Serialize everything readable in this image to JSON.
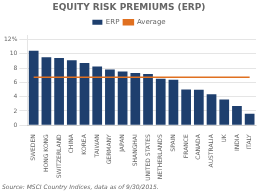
{
  "chart_data": {
    "type": "bar",
    "title": "EQUITY RISK PREMIUMS (ERP)",
    "categories": [
      "SWEDEN",
      "HONG KONG",
      "SWITZERLAND",
      "CHINA",
      "KOREA",
      "TAIWAN",
      "GERMANY",
      "JAPAN",
      "SHANGHAI",
      "UNITED STATES",
      "NETHERLANDS",
      "SPAIN",
      "FRANCE",
      "CANADA",
      "AUSTRALIA",
      "UK",
      "INDIA",
      "ITALY"
    ],
    "series": [
      {
        "name": "ERP",
        "type": "bar",
        "color": "#1e3f6e",
        "values": [
          10.4,
          9.5,
          9.4,
          9.1,
          8.7,
          8.2,
          7.8,
          7.5,
          7.3,
          7.15,
          6.5,
          6.35,
          5.0,
          4.95,
          4.35,
          3.6,
          2.7,
          1.6
        ]
      },
      {
        "name": "Average",
        "type": "line",
        "color": "#e07020",
        "values": [
          6.7,
          6.7,
          6.7,
          6.7,
          6.7,
          6.7,
          6.7,
          6.7,
          6.7,
          6.7,
          6.7,
          6.7,
          6.7,
          6.7,
          6.7,
          6.7,
          6.7,
          6.7
        ]
      }
    ],
    "ylim": [
      0,
      12.5
    ],
    "yticks": [
      0,
      2,
      4,
      6,
      8,
      10,
      {
        "value": 12,
        "label": "12%"
      }
    ],
    "grid": true,
    "legend": "top",
    "annotations": [
      "Source: MSCI Country Indices, data as of 9/30/2015."
    ]
  }
}
